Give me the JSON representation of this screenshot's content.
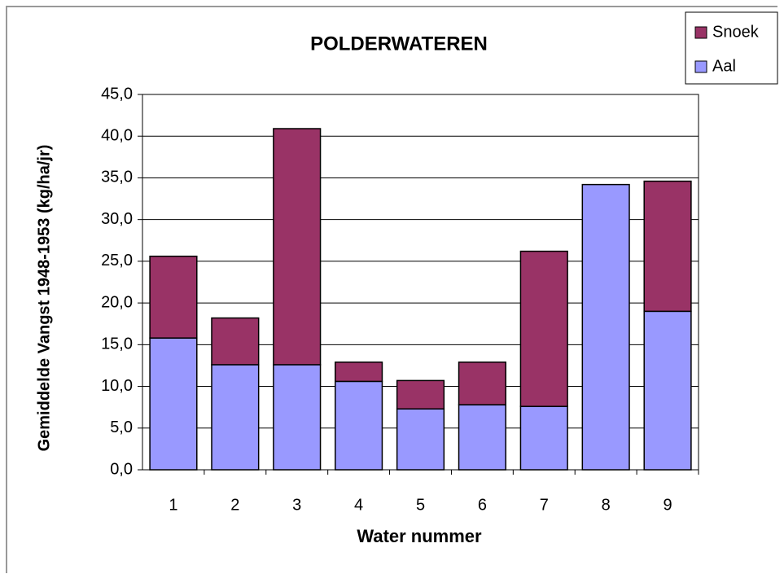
{
  "chart_data": {
    "type": "stacked_bar",
    "title": "POLDERWATEREN",
    "x_label": "Water nummer",
    "y_label": "Gemiddelde Vangst 1948-1953  (kg/ha/jr)",
    "categories": [
      "1",
      "2",
      "3",
      "4",
      "5",
      "6",
      "7",
      "8",
      "9"
    ],
    "series": [
      {
        "name": "Aal",
        "color": "#9999ff",
        "values": [
          15.8,
          12.6,
          12.6,
          10.6,
          7.3,
          7.8,
          7.6,
          34.2,
          19.0
        ]
      },
      {
        "name": "Snoek",
        "color": "#993366",
        "values": [
          9.8,
          5.6,
          28.3,
          2.3,
          3.4,
          5.1,
          18.6,
          0,
          15.6
        ]
      }
    ],
    "ylim": [
      0,
      45
    ],
    "yticks": [
      {
        "value": 0,
        "label": "0,0"
      },
      {
        "value": 5,
        "label": "5,0"
      },
      {
        "value": 10,
        "label": "10,0"
      },
      {
        "value": 15,
        "label": "15,0"
      },
      {
        "value": 20,
        "label": "20,0"
      },
      {
        "value": 25,
        "label": "25,0"
      },
      {
        "value": 30,
        "label": "30,0"
      },
      {
        "value": 35,
        "label": "35,0"
      },
      {
        "value": 40,
        "label": "40,0"
      },
      {
        "value": 45,
        "label": "45,0"
      }
    ],
    "grid": true,
    "legend": "top-right"
  }
}
